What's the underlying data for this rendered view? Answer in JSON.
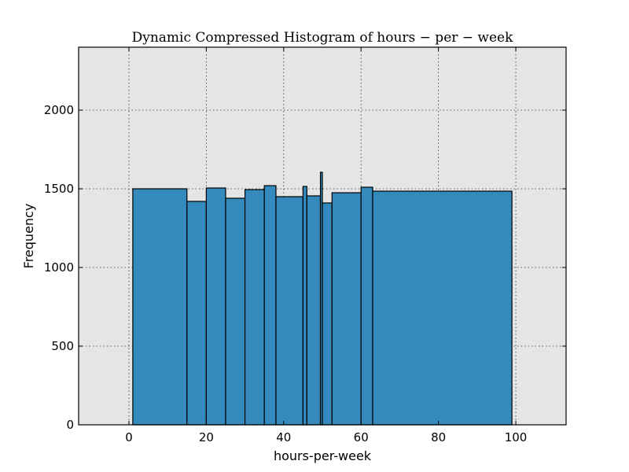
{
  "chart_data": {
    "type": "bar",
    "title": "Dynamic Compressed Histogram of hours − per − week",
    "xlabel": "hours-per-week",
    "ylabel": "Frequency",
    "xlim": [
      -13,
      113
    ],
    "ylim": [
      0,
      2400
    ],
    "xticks": [
      0,
      20,
      40,
      60,
      80,
      100
    ],
    "yticks": [
      0,
      500,
      1000,
      1500,
      2000
    ],
    "grid": true,
    "background_color": "#e5e5e5",
    "bar_color": "#348abd",
    "edge_color": "#000000",
    "bins": [
      {
        "x0": 1,
        "x1": 15,
        "value": 1500
      },
      {
        "x0": 15,
        "x1": 20,
        "value": 1420
      },
      {
        "x0": 20,
        "x1": 25,
        "value": 1505
      },
      {
        "x0": 25,
        "x1": 30,
        "value": 1440
      },
      {
        "x0": 30,
        "x1": 35,
        "value": 1495
      },
      {
        "x0": 35,
        "x1": 38,
        "value": 1520
      },
      {
        "x0": 38,
        "x1": 45,
        "value": 1450
      },
      {
        "x0": 45,
        "x1": 46,
        "value": 1515
      },
      {
        "x0": 46,
        "x1": 49.5,
        "value": 1455
      },
      {
        "x0": 49.5,
        "x1": 50,
        "value": 1605
      },
      {
        "x0": 50,
        "x1": 52.5,
        "value": 1410
      },
      {
        "x0": 52.5,
        "x1": 60,
        "value": 1475
      },
      {
        "x0": 60,
        "x1": 63,
        "value": 1510
      },
      {
        "x0": 63,
        "x1": 99,
        "value": 1485
      }
    ]
  }
}
